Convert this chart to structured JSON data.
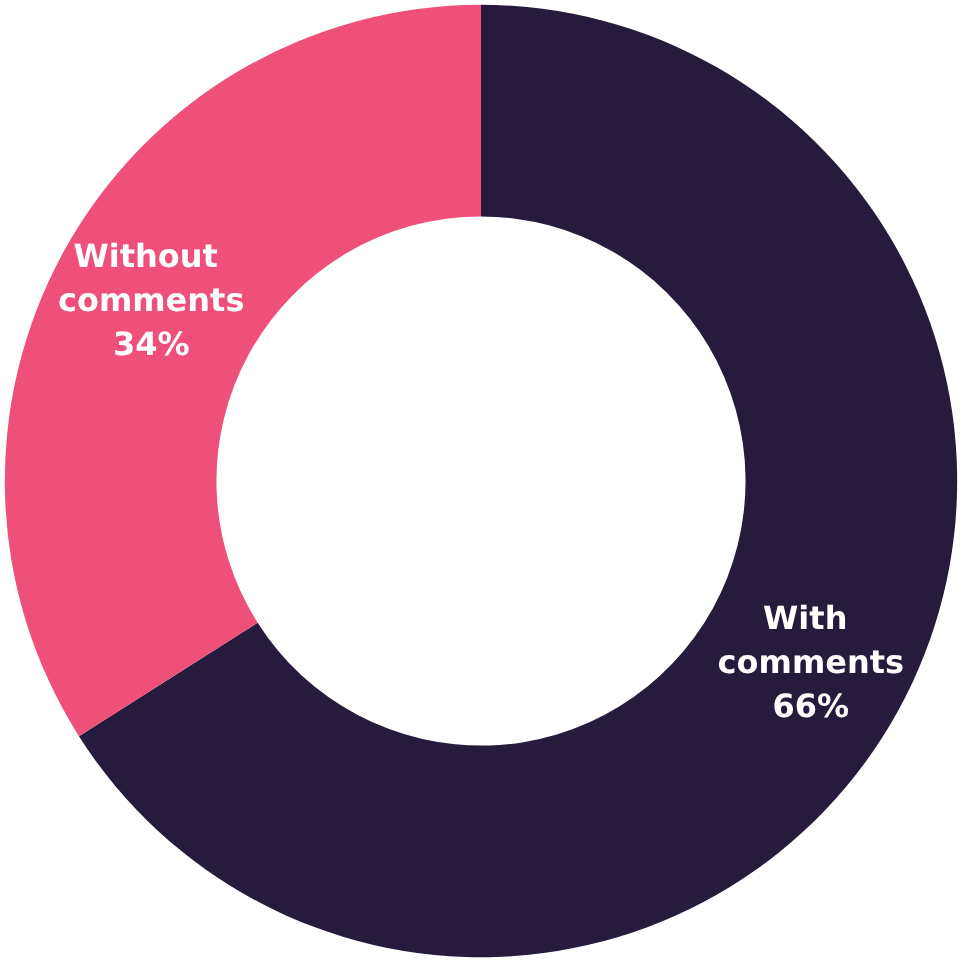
{
  "chart_data": {
    "type": "donut",
    "categories": [
      "With comments",
      "Without comments"
    ],
    "values": [
      66,
      34
    ],
    "value_labels": [
      "66%",
      "34%"
    ],
    "colors": [
      "#261a3d",
      "#ef5079"
    ],
    "legend": false
  }
}
